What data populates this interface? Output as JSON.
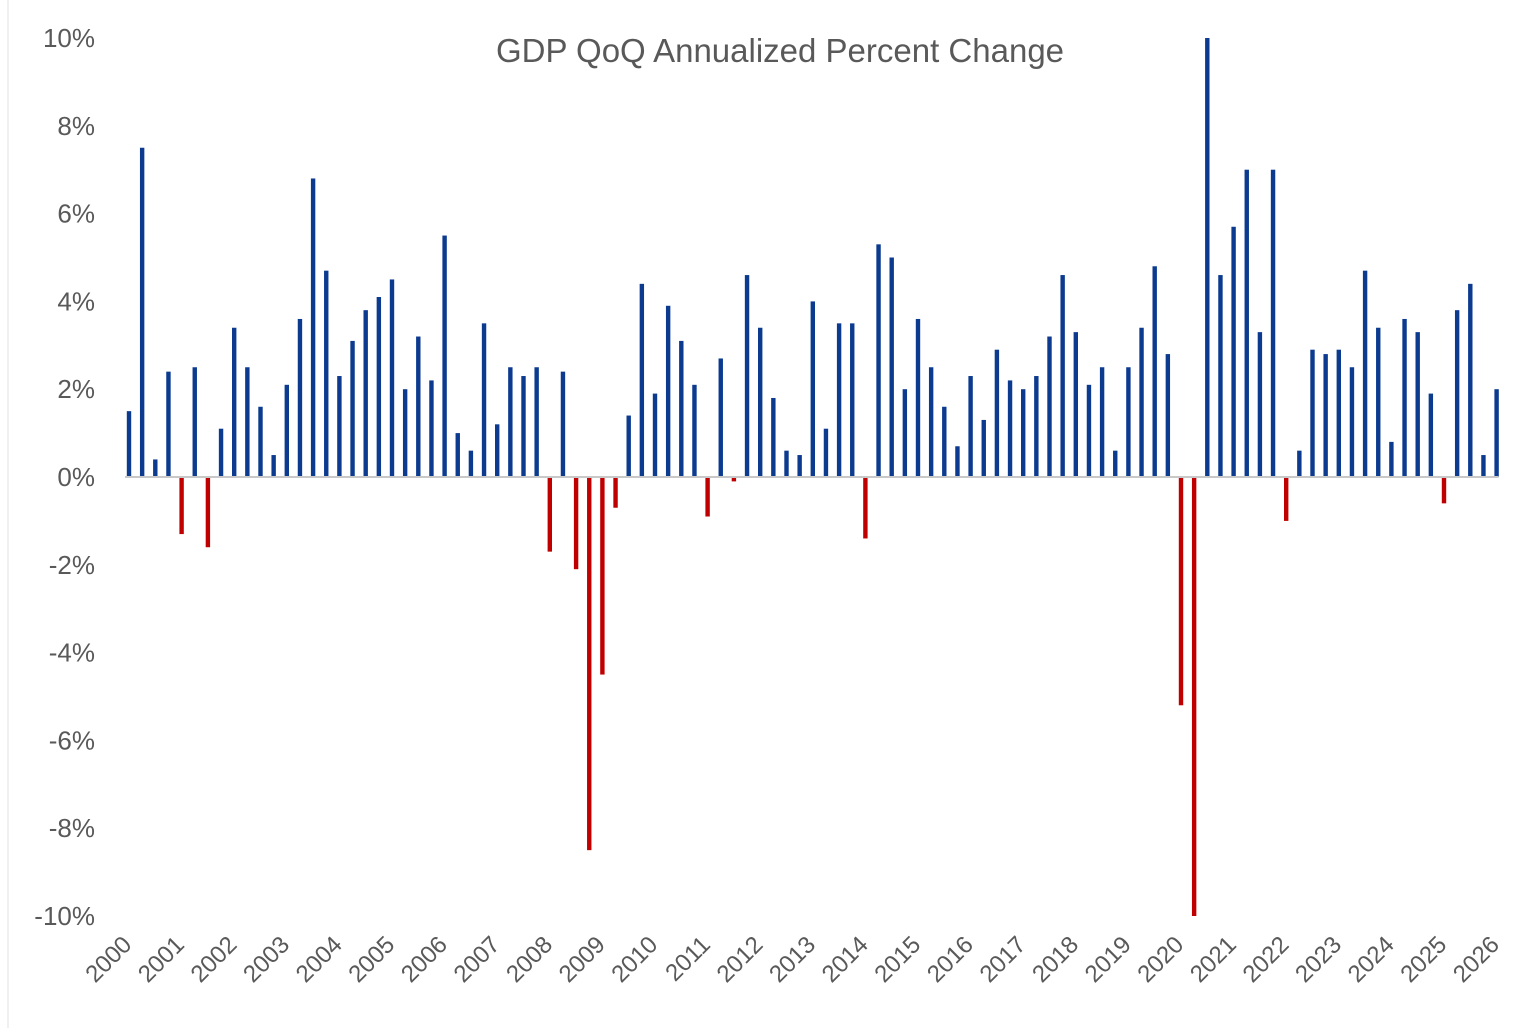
{
  "chart_data": {
    "type": "bar",
    "title": "GDP QoQ Annualized Percent Change",
    "categories": [
      "2000",
      null,
      null,
      null,
      "2001",
      null,
      null,
      null,
      "2002",
      null,
      null,
      null,
      "2003",
      null,
      null,
      null,
      "2004",
      null,
      null,
      null,
      "2005",
      null,
      null,
      null,
      "2006",
      null,
      null,
      null,
      "2007",
      null,
      null,
      null,
      "2008",
      null,
      null,
      null,
      "2009",
      null,
      null,
      null,
      "2010",
      null,
      null,
      null,
      "2011",
      null,
      null,
      null,
      "2012",
      null,
      null,
      null,
      "2013",
      null,
      null,
      null,
      "2014",
      null,
      null,
      null,
      "2015",
      null,
      null,
      null,
      "2016",
      null,
      null,
      null,
      "2017",
      null,
      null,
      null,
      "2018",
      null,
      null,
      null,
      "2019",
      null,
      null,
      null,
      "2020",
      null,
      null,
      null,
      "2021",
      null,
      null,
      null,
      "2022",
      null,
      null,
      null,
      "2023",
      null,
      null,
      null,
      "2024",
      null,
      null,
      null,
      "2025",
      null,
      null,
      null,
      "2026"
    ],
    "values": [
      1.5,
      7.5,
      0.4,
      2.4,
      -1.3,
      2.5,
      -1.6,
      1.1,
      3.4,
      2.5,
      1.6,
      0.5,
      2.1,
      3.6,
      6.8,
      4.7,
      2.3,
      3.1,
      3.8,
      4.1,
      4.5,
      2.0,
      3.2,
      2.2,
      5.5,
      1.0,
      0.6,
      3.5,
      1.2,
      2.5,
      2.3,
      2.5,
      -1.7,
      2.4,
      -2.1,
      -8.5,
      -4.5,
      -0.7,
      1.4,
      4.4,
      1.9,
      3.9,
      3.1,
      2.1,
      -0.9,
      2.7,
      -0.1,
      4.6,
      3.4,
      1.8,
      0.6,
      0.5,
      4.0,
      1.1,
      3.5,
      3.5,
      -1.4,
      5.3,
      5.0,
      2.0,
      3.6,
      2.5,
      1.6,
      0.7,
      2.3,
      1.3,
      2.9,
      2.2,
      2.0,
      2.3,
      3.2,
      4.6,
      3.3,
      2.1,
      2.5,
      0.6,
      2.5,
      3.4,
      4.8,
      2.8,
      -5.2,
      -10,
      10,
      4.6,
      5.7,
      7.0,
      3.3,
      7.0,
      -1.0,
      0.6,
      2.9,
      2.8,
      2.9,
      2.5,
      4.7,
      3.4,
      0.8,
      3.6,
      3.3,
      1.9,
      -0.6,
      3.8,
      4.4,
      0.5,
      2.0
    ],
    "color": "#0b3a8f",
    "negative_color": "#c00000",
    "ylim": [
      -10,
      10
    ],
    "yticks": [
      {
        "value": -10,
        "label": "-10%"
      },
      {
        "value": -8,
        "label": "-8%"
      },
      {
        "value": -6,
        "label": "-6%"
      },
      {
        "value": -4,
        "label": "-4%"
      },
      {
        "value": -2,
        "label": "-2%"
      },
      {
        "value": 0,
        "label": "0%"
      },
      {
        "value": 2,
        "label": "2%"
      },
      {
        "value": 4,
        "label": "4%"
      },
      {
        "value": 6,
        "label": "6%"
      },
      {
        "value": 8,
        "label": "8%"
      },
      {
        "value": 10,
        "label": "10%"
      }
    ],
    "grid": false
  }
}
